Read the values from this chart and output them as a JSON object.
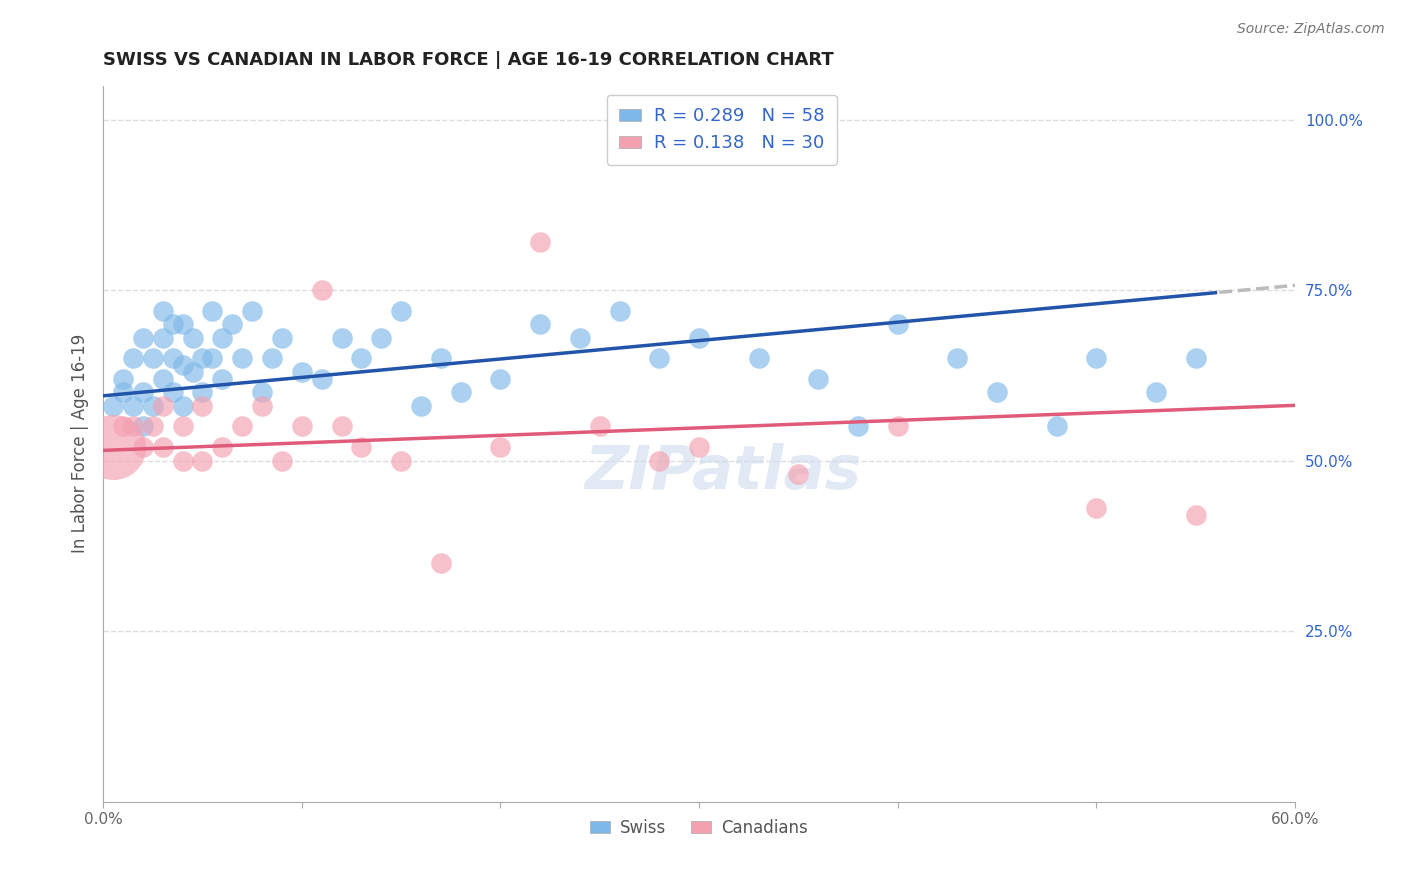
{
  "title": "SWISS VS CANADIAN IN LABOR FORCE | AGE 16-19 CORRELATION CHART",
  "source": "Source: ZipAtlas.com",
  "ylabel": "In Labor Force | Age 16-19",
  "xlim": [
    0.0,
    0.6
  ],
  "ylim": [
    0.0,
    1.05
  ],
  "swiss_color": "#7EB8E8",
  "canadian_color": "#F4A0B0",
  "swiss_line_color": "#2255AA",
  "canadian_line_color": "#E05A7A",
  "dashed_color": "#BBBBBB",
  "legend_label1": "Swiss",
  "legend_label2": "Canadians",
  "swiss_x": [
    0.005,
    0.01,
    0.01,
    0.015,
    0.015,
    0.02,
    0.02,
    0.02,
    0.025,
    0.025,
    0.03,
    0.03,
    0.03,
    0.035,
    0.035,
    0.035,
    0.04,
    0.04,
    0.04,
    0.045,
    0.045,
    0.05,
    0.05,
    0.055,
    0.055,
    0.06,
    0.06,
    0.065,
    0.07,
    0.075,
    0.08,
    0.085,
    0.09,
    0.1,
    0.11,
    0.12,
    0.13,
    0.14,
    0.15,
    0.16,
    0.17,
    0.18,
    0.2,
    0.22,
    0.24,
    0.26,
    0.28,
    0.3,
    0.33,
    0.36,
    0.38,
    0.4,
    0.43,
    0.45,
    0.48,
    0.5,
    0.53,
    0.55
  ],
  "swiss_y": [
    0.58,
    0.6,
    0.62,
    0.58,
    0.65,
    0.55,
    0.6,
    0.68,
    0.58,
    0.65,
    0.62,
    0.68,
    0.72,
    0.6,
    0.65,
    0.7,
    0.58,
    0.64,
    0.7,
    0.63,
    0.68,
    0.6,
    0.65,
    0.65,
    0.72,
    0.62,
    0.68,
    0.7,
    0.65,
    0.72,
    0.6,
    0.65,
    0.68,
    0.63,
    0.62,
    0.68,
    0.65,
    0.68,
    0.72,
    0.58,
    0.65,
    0.6,
    0.62,
    0.7,
    0.68,
    0.72,
    0.65,
    0.68,
    0.65,
    0.62,
    0.55,
    0.7,
    0.65,
    0.6,
    0.55,
    0.65,
    0.6,
    0.65
  ],
  "canadian_x": [
    0.005,
    0.01,
    0.015,
    0.02,
    0.025,
    0.03,
    0.03,
    0.04,
    0.04,
    0.05,
    0.05,
    0.06,
    0.07,
    0.08,
    0.09,
    0.1,
    0.11,
    0.12,
    0.13,
    0.15,
    0.17,
    0.2,
    0.22,
    0.25,
    0.28,
    0.3,
    0.35,
    0.4,
    0.5,
    0.55
  ],
  "canadian_y": [
    0.52,
    0.55,
    0.55,
    0.52,
    0.55,
    0.52,
    0.58,
    0.5,
    0.55,
    0.5,
    0.58,
    0.52,
    0.55,
    0.58,
    0.5,
    0.55,
    0.75,
    0.55,
    0.52,
    0.5,
    0.35,
    0.52,
    0.82,
    0.55,
    0.5,
    0.52,
    0.48,
    0.55,
    0.43,
    0.42
  ],
  "canadian_big_idx": 0,
  "watermark": "ZIPatlas",
  "background_color": "#FFFFFF",
  "grid_color": "#DDDDDD",
  "swiss_line_start": 0.0,
  "swiss_line_end_solid": 0.56,
  "swiss_line_end_dash": 0.6,
  "swiss_intercept": 0.595,
  "swiss_slope": 0.27,
  "canadian_intercept": 0.515,
  "canadian_slope": 0.11
}
